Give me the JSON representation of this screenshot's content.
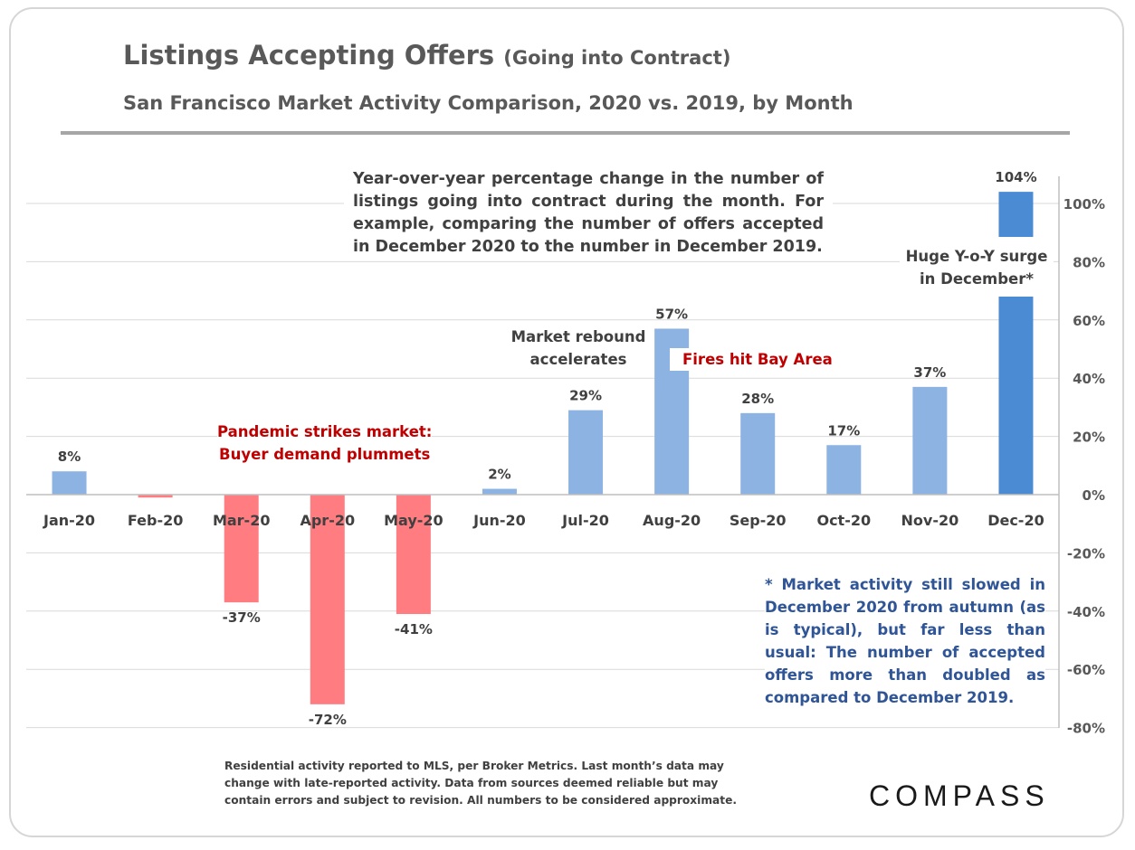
{
  "title": {
    "main": "Listings Accepting Offers",
    "paren": "(Going into Contract)"
  },
  "subtitle": "San Francisco Market Activity Comparison, 2020 vs. 2019, by Month",
  "description": "Year-over-year percentage change in the number of listings going into contract during the month. For example, comparing the number of offers accepted in December 2020 to the number in December 2019.",
  "annotations": {
    "pandemic": [
      "Pandemic strikes market:",
      "Buyer demand plummets"
    ],
    "rebound": [
      "Market rebound",
      "accelerates"
    ],
    "fires": "Fires hit Bay Area",
    "surge": [
      "Huge Y-o-Y surge",
      "in December*"
    ]
  },
  "note": "* Market activity still slowed in December 2020 from autumn (as is typical), but far less than usual: The number of accepted offers more than doubled as compared to December 2019.",
  "footnote": "Residential activity reported to MLS, per Broker Metrics. Last month’s data may change with late-reported activity. Data from sources deemed reliable but may contain errors and subject to revision. All numbers to be considered approximate.",
  "logo": "COMPASS",
  "colors": {
    "positive": "#8db3e2",
    "negative": "#ff7c80",
    "highlight": "#4a8bd4",
    "text": "#595959",
    "red": "#c00000",
    "blue": "#2f5597"
  },
  "chart_data": {
    "type": "bar",
    "title": "Listings Accepting Offers (Going into Contract)",
    "categories": [
      "Jan-20",
      "Feb-20",
      "Mar-20",
      "Apr-20",
      "May-20",
      "Jun-20",
      "Jul-20",
      "Aug-20",
      "Sep-20",
      "Oct-20",
      "Nov-20",
      "Dec-20"
    ],
    "values": [
      8,
      -1,
      -37,
      -72,
      -41,
      2,
      29,
      57,
      28,
      17,
      37,
      104
    ],
    "data_labels": [
      "8%",
      "",
      "-37%",
      "-72%",
      "-41%",
      "2%",
      "29%",
      "57%",
      "28%",
      "17%",
      "37%",
      "104%"
    ],
    "yticks": [
      -80,
      -60,
      -40,
      -20,
      0,
      20,
      40,
      60,
      80,
      100
    ],
    "ytick_labels": [
      "-80%",
      "-60%",
      "-40%",
      "-20%",
      "0%",
      "20%",
      "40%",
      "60%",
      "80%",
      "100%"
    ],
    "ylim": [
      -80,
      110
    ],
    "y_axis_side": "right",
    "highlight_category": "Dec-20",
    "xlabel": "",
    "ylabel": ""
  }
}
